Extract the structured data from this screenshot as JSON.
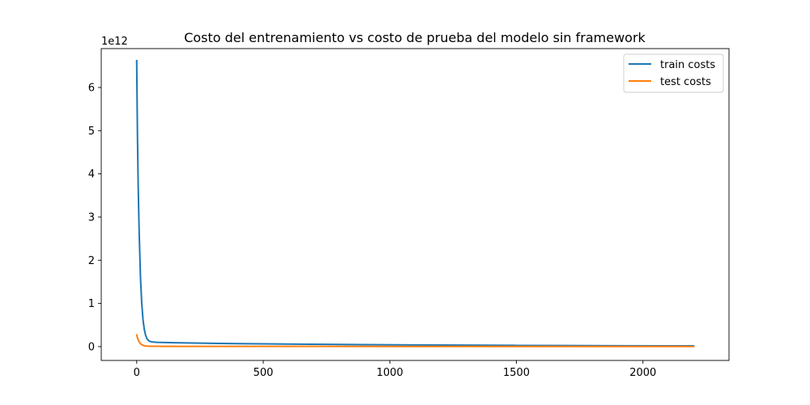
{
  "chart_data": {
    "type": "line",
    "title": "Costo del entrenamiento vs costo de prueba del modelo sin framework",
    "xlabel": "",
    "ylabel": "",
    "y_offset_label": "1e12",
    "xlim": [
      -140,
      2340
    ],
    "ylim": [
      -0.32,
      6.9
    ],
    "x_ticks": [
      0,
      500,
      1000,
      1500,
      2000
    ],
    "x_tick_labels": [
      "0",
      "500",
      "1000",
      "1500",
      "2000"
    ],
    "y_ticks": [
      0,
      1,
      2,
      3,
      4,
      5,
      6
    ],
    "y_tick_labels": [
      "0",
      "1",
      "2",
      "3",
      "4",
      "5",
      "6"
    ],
    "grid": false,
    "legend_position": "top-right",
    "series": [
      {
        "name": "train costs",
        "color": "#1f77b4",
        "x": [
          0,
          3,
          6,
          10,
          15,
          20,
          25,
          30,
          35,
          40,
          45,
          50,
          60,
          70,
          80,
          100,
          150,
          200,
          300,
          400,
          500,
          700,
          900,
          1100,
          1300,
          1500,
          1700,
          1900,
          2100,
          2200
        ],
        "y": [
          6.62,
          4.9,
          3.7,
          2.6,
          1.6,
          1.0,
          0.62,
          0.4,
          0.27,
          0.19,
          0.15,
          0.125,
          0.11,
          0.105,
          0.1,
          0.097,
          0.09,
          0.085,
          0.077,
          0.07,
          0.064,
          0.054,
          0.046,
          0.039,
          0.033,
          0.028,
          0.024,
          0.021,
          0.018,
          0.017
        ]
      },
      {
        "name": "test costs",
        "color": "#ff7f0e",
        "x": [
          0,
          5,
          10,
          15,
          20,
          25,
          30,
          40,
          50,
          60,
          80,
          100,
          150,
          200,
          300,
          500,
          700,
          1000,
          1500,
          2000,
          2200
        ],
        "y": [
          0.27,
          0.17,
          0.11,
          0.07,
          0.045,
          0.03,
          0.02,
          0.012,
          0.009,
          0.008,
          0.007,
          0.0065,
          0.006,
          0.0058,
          0.0055,
          0.005,
          0.0048,
          0.0045,
          0.0042,
          0.004,
          0.004
        ]
      }
    ]
  }
}
